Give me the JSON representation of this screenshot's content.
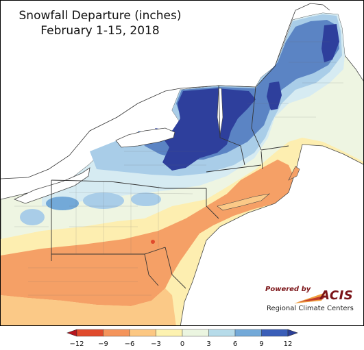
{
  "title": {
    "line1": "Snowfall Departure (inches)",
    "line2": "February 1-15, 2018"
  },
  "logo": {
    "powered_by": "Powered by",
    "name": "ACIS",
    "subtitle": "Regional Climate Centers"
  },
  "legend": {
    "ticks": [
      "−12",
      "−9",
      "−6",
      "−3",
      "0",
      "3",
      "6",
      "9",
      "12"
    ],
    "colors": [
      "#b8141d",
      "#e04a2c",
      "#f4945b",
      "#fcc782",
      "#fdf2b0",
      "#ebf5e0",
      "#b6dbe9",
      "#73a9d8",
      "#3a5eb8",
      "#2b3f98"
    ]
  },
  "colors": {
    "deep_blue": "#2e3f9c",
    "mid_blue": "#5b84c4",
    "light_blue": "#a9cde8",
    "pale_blue": "#d6ebf2",
    "pale_green": "#eef5e2",
    "pale_yellow": "#fdeeb0",
    "light_orange": "#fbc987",
    "orange": "#f5a066",
    "red": "#e04a2c",
    "lake": "#ffffff"
  }
}
